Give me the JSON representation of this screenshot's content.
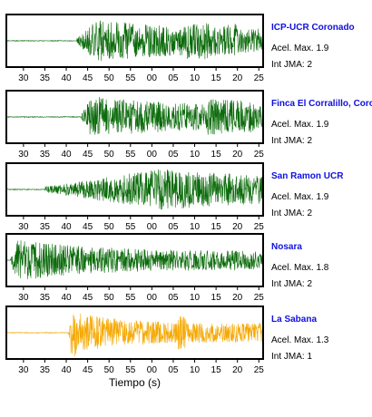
{
  "colors": {
    "trace_default": "#0b6b0b",
    "trace_highlight": "#f5a800",
    "title": "#1010e0"
  },
  "chart_data": {
    "type": "line",
    "x": {
      "label": "Tiempo (s)",
      "ticks": [
        "30",
        "35",
        "40",
        "45",
        "50",
        "55",
        "00",
        "05",
        "10",
        "15",
        "20",
        "25"
      ]
    },
    "stations": [
      {
        "name": "ICP-UCR Coronado",
        "acel_label": "Acel. Max. 1.9",
        "jma_label": "Int JMA: 2",
        "onset": 42.5,
        "peak": 47,
        "decay": 9,
        "color": "trace_default",
        "seed": 11
      },
      {
        "name": "Finca El Corralillo, Coronado",
        "acel_label": "Acel. Max. 1.9",
        "jma_label": "Int JMA: 2",
        "onset": 43.5,
        "peak": 46,
        "decay": 8,
        "color": "trace_default",
        "seed": 23
      },
      {
        "name": "San Ramon UCR",
        "acel_label": "Acel. Max. 1.9",
        "jma_label": "Int JMA: 2",
        "onset": 35,
        "peak": 62,
        "decay": 10,
        "color": "trace_default",
        "seed": 37
      },
      {
        "name": "Nosara",
        "acel_label": "Acel. Max. 1.8",
        "jma_label": "Int JMA: 2",
        "onset": 27,
        "peak": 28.5,
        "decay": 6,
        "color": "trace_default",
        "seed": 51
      },
      {
        "name": "La Sabana",
        "acel_label": "Acel. Max. 1.3",
        "jma_label": "Int JMA: 1",
        "onset": 40.5,
        "peak": 41.5,
        "decay": 4,
        "color": "trace_highlight",
        "seed": 67
      }
    ]
  }
}
